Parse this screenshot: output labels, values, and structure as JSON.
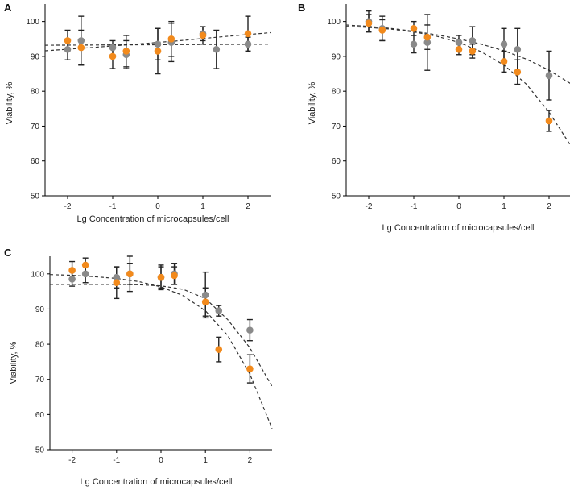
{
  "colors": {
    "series_gray": "#8a8a8a",
    "series_orange": "#f28a1c",
    "axis": "#000000",
    "fit": "#333333"
  },
  "chart_data": [
    {
      "panel": "A",
      "type": "scatter",
      "xlabel": "Lg Concentration of microcapsules/cell",
      "ylabel": "Viability, %",
      "xlim": [
        -2.5,
        2.5
      ],
      "ylim": [
        50,
        105
      ],
      "xticks": [
        -2,
        -1,
        0,
        1,
        2
      ],
      "yticks": [
        50,
        60,
        70,
        80,
        90,
        100
      ],
      "series": [
        {
          "name": "gray",
          "color": "#8a8a8a",
          "points": [
            {
              "x": -2.0,
              "y": 92.0,
              "err": 3.0
            },
            {
              "x": -1.7,
              "y": 94.5,
              "err": 7.0
            },
            {
              "x": -1.0,
              "y": 92.5,
              "err": 2.0
            },
            {
              "x": -0.7,
              "y": 90.5,
              "err": 4.0
            },
            {
              "x": 0.0,
              "y": 93.5,
              "err": 4.5
            },
            {
              "x": 0.3,
              "y": 94.0,
              "err": 5.5
            },
            {
              "x": 1.0,
              "y": 96.5,
              "err": 2.0
            },
            {
              "x": 1.3,
              "y": 92.0,
              "err": 5.5
            },
            {
              "x": 2.0,
              "y": 93.5,
              "err": 2.0
            }
          ],
          "fit": [
            [
              -2.5,
              93.2
            ],
            [
              2.5,
              93.5
            ]
          ]
        },
        {
          "name": "orange",
          "color": "#f28a1c",
          "points": [
            {
              "x": -2.0,
              "y": 94.5,
              "err": 3.0
            },
            {
              "x": -1.7,
              "y": 92.5,
              "err": 5.0
            },
            {
              "x": -1.0,
              "y": 90.0,
              "err": 3.5
            },
            {
              "x": -0.7,
              "y": 91.5,
              "err": 4.5
            },
            {
              "x": 0.0,
              "y": 91.5,
              "err": 6.5
            },
            {
              "x": 0.3,
              "y": 95.0,
              "err": 5.0
            },
            {
              "x": 1.0,
              "y": 96.0,
              "err": 2.5
            },
            {
              "x": 2.0,
              "y": 96.5,
              "err": 5.0
            }
          ],
          "fit": [
            [
              -2.5,
              91.6
            ],
            [
              -1.5,
              92.5
            ],
            [
              -0.5,
              93.5
            ],
            [
              0.5,
              94.5
            ],
            [
              1.5,
              95.7
            ],
            [
              2.5,
              96.8
            ]
          ]
        }
      ]
    },
    {
      "panel": "B",
      "type": "scatter",
      "xlabel": "Lg Concentration of microcapsules/cell",
      "ylabel": "Viability, %",
      "xlim": [
        -2.5,
        2.5
      ],
      "ylim": [
        50,
        105
      ],
      "xticks": [
        -2,
        -1,
        0,
        1,
        2
      ],
      "yticks": [
        50,
        60,
        70,
        80,
        90,
        100
      ],
      "series": [
        {
          "name": "gray",
          "color": "#8a8a8a",
          "points": [
            {
              "x": -2.0,
              "y": 100.0,
              "err": 3.0
            },
            {
              "x": -1.7,
              "y": 98.0,
              "err": 3.5
            },
            {
              "x": -1.0,
              "y": 93.5,
              "err": 2.5
            },
            {
              "x": -0.7,
              "y": 94.0,
              "err": 8.0
            },
            {
              "x": 0.0,
              "y": 94.0,
              "err": 2.0
            },
            {
              "x": 0.3,
              "y": 94.5,
              "err": 4.0
            },
            {
              "x": 1.0,
              "y": 93.5,
              "err": 4.5
            },
            {
              "x": 1.3,
              "y": 92.0,
              "err": 6.0
            },
            {
              "x": 2.0,
              "y": 84.5,
              "err": 7.0
            }
          ],
          "fit": [
            [
              -2.5,
              99.0
            ],
            [
              -2.0,
              98.6
            ],
            [
              -1.5,
              98.0
            ],
            [
              -1.0,
              97.2
            ],
            [
              -0.5,
              96.2
            ],
            [
              0.0,
              95.0
            ],
            [
              0.5,
              93.5
            ],
            [
              1.0,
              91.6
            ],
            [
              1.5,
              89.2
            ],
            [
              2.0,
              86.0
            ],
            [
              2.5,
              82.0
            ]
          ]
        },
        {
          "name": "orange",
          "color": "#f28a1c",
          "points": [
            {
              "x": -2.0,
              "y": 99.5,
              "err": 2.5
            },
            {
              "x": -1.7,
              "y": 97.5,
              "err": 3.0
            },
            {
              "x": -1.0,
              "y": 98.0,
              "err": 2.0
            },
            {
              "x": -0.7,
              "y": 95.5,
              "err": 3.5
            },
            {
              "x": 0.0,
              "y": 92.0,
              "err": 1.5
            },
            {
              "x": 0.3,
              "y": 91.5,
              "err": 2.0
            },
            {
              "x": 1.0,
              "y": 88.5,
              "err": 3.0
            },
            {
              "x": 1.3,
              "y": 85.5,
              "err": 3.5
            },
            {
              "x": 2.0,
              "y": 71.5,
              "err": 3.0
            }
          ],
          "fit": [
            [
              -2.5,
              98.6
            ],
            [
              -2.0,
              98.3
            ],
            [
              -1.5,
              97.8
            ],
            [
              -1.0,
              97.0
            ],
            [
              -0.5,
              95.8
            ],
            [
              0.0,
              94.0
            ],
            [
              0.5,
              91.3
            ],
            [
              1.0,
              87.5
            ],
            [
              1.5,
              82.0
            ],
            [
              2.0,
              74.0
            ],
            [
              2.5,
              64.0
            ]
          ]
        }
      ]
    },
    {
      "panel": "C",
      "type": "scatter",
      "xlabel": "Lg Concentration of microcapsules/cell",
      "ylabel": "Viability, %",
      "xlim": [
        -2.5,
        2.5
      ],
      "ylim": [
        50,
        105
      ],
      "xticks": [
        -2,
        -1,
        0,
        1,
        2
      ],
      "yticks": [
        50,
        60,
        70,
        80,
        90,
        100
      ],
      "series": [
        {
          "name": "gray",
          "color": "#8a8a8a",
          "points": [
            {
              "x": -2.0,
              "y": 98.5,
              "err": 2.0
            },
            {
              "x": -1.7,
              "y": 100.0,
              "err": 2.5
            },
            {
              "x": -1.0,
              "y": 99.0,
              "err": 3.0
            },
            {
              "x": -0.7,
              "y": 100.0,
              "err": 5.0
            },
            {
              "x": 0.0,
              "y": 99.0,
              "err": 3.0
            },
            {
              "x": 0.3,
              "y": 100.0,
              "err": 3.0
            },
            {
              "x": 1.0,
              "y": 94.0,
              "err": 6.5
            },
            {
              "x": 1.3,
              "y": 89.5,
              "err": 1.5
            },
            {
              "x": 2.0,
              "y": 84.0,
              "err": 3.0
            }
          ],
          "fit": [
            [
              -2.5,
              97.0
            ],
            [
              -2.0,
              97.0
            ],
            [
              -1.5,
              97.0
            ],
            [
              -1.0,
              97.0
            ],
            [
              -0.5,
              96.9
            ],
            [
              0.0,
              96.6
            ],
            [
              0.5,
              95.6
            ],
            [
              1.0,
              93.0
            ],
            [
              1.5,
              87.0
            ],
            [
              2.0,
              79.0
            ],
            [
              2.5,
              68.0
            ]
          ]
        },
        {
          "name": "orange",
          "color": "#f28a1c",
          "points": [
            {
              "x": -2.0,
              "y": 101.0,
              "err": 2.5
            },
            {
              "x": -1.7,
              "y": 102.5,
              "err": 2.0
            },
            {
              "x": -1.0,
              "y": 97.5,
              "err": 4.5
            },
            {
              "x": -0.7,
              "y": 100.0,
              "err": 3.0
            },
            {
              "x": 0.0,
              "y": 99.0,
              "err": 3.5
            },
            {
              "x": 0.3,
              "y": 99.5,
              "err": 2.5
            },
            {
              "x": 1.0,
              "y": 92.0,
              "err": 4.0
            },
            {
              "x": 1.3,
              "y": 78.5,
              "err": 3.5
            },
            {
              "x": 2.0,
              "y": 73.0,
              "err": 4.0
            }
          ],
          "fit": [
            [
              -2.5,
              99.8
            ],
            [
              -2.0,
              99.6
            ],
            [
              -1.5,
              99.2
            ],
            [
              -1.0,
              98.7
            ],
            [
              -0.5,
              97.8
            ],
            [
              0.0,
              96.3
            ],
            [
              0.5,
              93.8
            ],
            [
              1.0,
              89.5
            ],
            [
              1.5,
              82.5
            ],
            [
              2.0,
              71.5
            ],
            [
              2.5,
              56.0
            ]
          ]
        }
      ]
    }
  ]
}
